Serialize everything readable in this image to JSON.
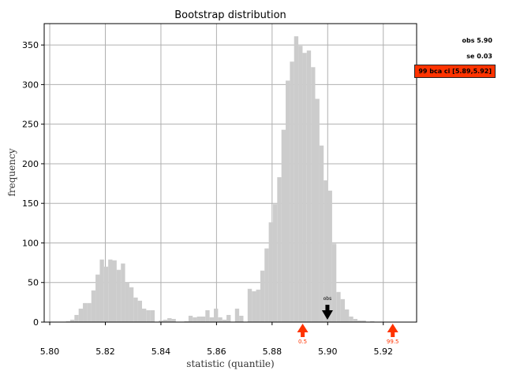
{
  "chart_data": {
    "type": "bar",
    "title": "Bootstrap distribution",
    "xlabel": "statistic (quantile)",
    "ylabel": "frequency",
    "xlim": [
      5.798,
      5.932
    ],
    "ylim": [
      0,
      377
    ],
    "xticks": [
      5.8,
      5.82,
      5.84,
      5.86,
      5.88,
      5.9,
      5.92
    ],
    "xtick_labels": [
      "5.80",
      "5.82",
      "5.84",
      "5.86",
      "5.88",
      "5.90",
      "5.92"
    ],
    "yticks": [
      0,
      50,
      100,
      150,
      200,
      250,
      300,
      350
    ],
    "ytick_labels": [
      "0",
      "50",
      "100",
      "150",
      "200",
      "250",
      "300",
      "350"
    ],
    "grid": true,
    "bar_color": "#cccccc",
    "bin_start": 5.8028,
    "bin_width": 0.00152,
    "values": [
      0,
      0,
      1,
      3,
      9,
      17,
      24,
      24,
      40,
      60,
      79,
      70,
      79,
      78,
      66,
      74,
      50,
      44,
      31,
      27,
      17,
      15,
      15,
      0,
      2,
      3,
      5,
      4,
      0,
      0,
      1,
      8,
      6,
      7,
      7,
      15,
      6,
      17,
      6,
      3,
      9,
      0,
      17,
      8,
      0,
      42,
      39,
      41,
      65,
      93,
      126,
      149,
      183,
      243,
      305,
      329,
      361,
      349,
      340,
      343,
      322,
      282,
      223,
      179,
      166,
      99,
      38,
      29,
      16,
      7,
      4,
      2,
      2,
      0,
      1,
      0,
      0,
      0,
      0
    ],
    "annotations": [
      {
        "label": "obs",
        "x": 5.8999,
        "color": "#000000",
        "kind": "obs"
      },
      {
        "label": "0.5",
        "x": 5.891,
        "color": "#ff3300",
        "kind": "ci"
      },
      {
        "label": "99.5",
        "x": 5.9234,
        "color": "#ff3300",
        "kind": "ci"
      }
    ]
  },
  "stats": {
    "obs_text": "obs 5.90",
    "se_text": "se 0.03",
    "ci_text": "99 bca ci [5.89,5.92]"
  },
  "colors": {
    "accent": "#ff3300",
    "grid": "#b0b0b0",
    "bars": "#cccccc"
  }
}
